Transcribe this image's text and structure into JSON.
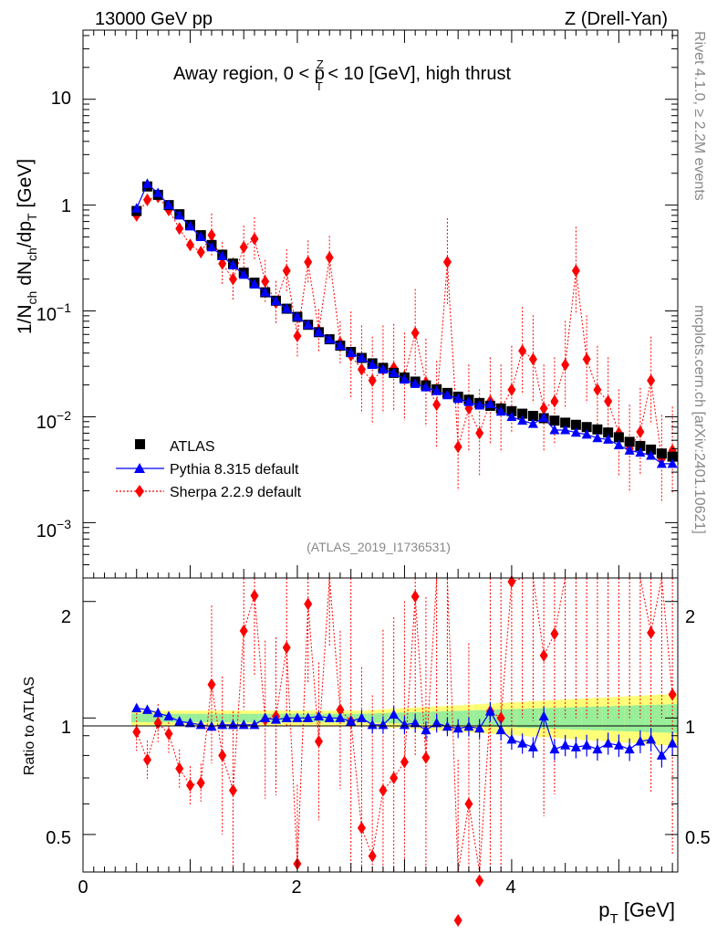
{
  "header": {
    "left": "13000 GeV pp",
    "right": "Z (Drell-Yan)"
  },
  "title": {
    "prefix": "Away region, 0 < p",
    "sup": "Z",
    "sub": "T",
    "suffix": " < 10 [GeV], high thrust"
  },
  "side_labels": {
    "rivet": "Rivet 4.1.0, ≥ 2.2M events",
    "mcplots": "mcplots.cern.ch [arXiv:2401.10621]"
  },
  "analysis_id": "(ATLAS_2019_I1736531)",
  "axes": {
    "ylabel_top": "1/N_ch dN_ch/dp_T [GeV]",
    "ylabel_bottom": "Ratio to ATLAS",
    "xlabel": "p_T [GeV]",
    "top_ticks": [
      "10",
      "1",
      "10^-1",
      "10^-2",
      "10^-3"
    ],
    "ratio_ticks": [
      "2",
      "1",
      "0.5"
    ],
    "x_ticks": [
      "0",
      "2",
      "4"
    ]
  },
  "legend": [
    "ATLAS",
    "Pythia 8.315 default",
    "Sherpa 2.2.9 default"
  ],
  "colors": {
    "atlas": "#000000",
    "pythia": "#0000ff",
    "sherpa": "#ff0000",
    "band_outer": "#ffff77",
    "band_inner": "#99ee99"
  },
  "chart_data": {
    "type": "scatter",
    "xlim": [
      0,
      5.55
    ],
    "ylim_main": [
      0.0003,
      45
    ],
    "ylim_ratio": [
      0.4,
      2.3
    ],
    "x": [
      0.5,
      0.6,
      0.7,
      0.8,
      0.9,
      1.0,
      1.1,
      1.2,
      1.3,
      1.4,
      1.5,
      1.6,
      1.7,
      1.8,
      1.9,
      2.0,
      2.1,
      2.2,
      2.3,
      2.4,
      2.5,
      2.6,
      2.7,
      2.8,
      2.9,
      3.0,
      3.1,
      3.2,
      3.3,
      3.4,
      3.5,
      3.6,
      3.7,
      3.8,
      3.9,
      4.0,
      4.1,
      4.2,
      4.3,
      4.4,
      4.5,
      4.6,
      4.7,
      4.8,
      4.9,
      5.0,
      5.1,
      5.2,
      5.3,
      5.4,
      5.5
    ],
    "series": [
      {
        "name": "ATLAS",
        "values": [
          0.88,
          1.5,
          1.25,
          1.0,
          0.82,
          0.65,
          0.52,
          0.42,
          0.34,
          0.28,
          0.23,
          0.185,
          0.15,
          0.125,
          0.105,
          0.088,
          0.074,
          0.063,
          0.054,
          0.047,
          0.041,
          0.036,
          0.032,
          0.029,
          0.026,
          0.0235,
          0.0215,
          0.0198,
          0.0182,
          0.0168,
          0.0155,
          0.0145,
          0.0135,
          0.0127,
          0.012,
          0.0113,
          0.0107,
          0.0102,
          0.0097,
          0.0092,
          0.0088,
          0.0084,
          0.008,
          0.0076,
          0.0071,
          0.0064,
          0.0058,
          0.0053,
          0.0049,
          0.0045,
          0.0042
        ]
      },
      {
        "name": "Pythia 8.315 default",
        "values": [
          0.93,
          1.59,
          1.3,
          1.0,
          0.8,
          0.63,
          0.5,
          0.4,
          0.33,
          0.27,
          0.22,
          0.178,
          0.15,
          0.124,
          0.105,
          0.088,
          0.074,
          0.063,
          0.054,
          0.047,
          0.04,
          0.036,
          0.031,
          0.028,
          0.026,
          0.0225,
          0.0205,
          0.019,
          0.0175,
          0.016,
          0.0148,
          0.0138,
          0.0128,
          0.0132,
          0.0112,
          0.01,
          0.0092,
          0.0086,
          0.0098,
          0.0075,
          0.0075,
          0.0071,
          0.0068,
          0.0063,
          0.0061,
          0.0054,
          0.0048,
          0.0046,
          0.0043,
          0.0036,
          0.0036
        ],
        "ratio": [
          1.06,
          1.05,
          1.03,
          1.01,
          0.98,
          0.97,
          0.96,
          0.95,
          0.96,
          0.96,
          0.96,
          0.96,
          1.0,
          0.99,
          1.0,
          1.0,
          1.0,
          1.01,
          1.0,
          1.0,
          0.98,
          1.0,
          0.96,
          0.96,
          1.02,
          0.96,
          0.97,
          0.93,
          0.97,
          0.95,
          0.94,
          0.95,
          0.94,
          1.04,
          0.93,
          0.88,
          0.86,
          0.84,
          1.01,
          0.83,
          0.85,
          0.84,
          0.85,
          0.83,
          0.86,
          0.85,
          0.83,
          0.87,
          0.88,
          0.8,
          0.86
        ]
      },
      {
        "name": "Sherpa 2.2.9 default",
        "values": [
          0.8,
          1.12,
          1.2,
          0.9,
          0.6,
          0.42,
          0.36,
          0.52,
          0.28,
          0.2,
          0.4,
          0.48,
          0.19,
          0.12,
          0.24,
          0.058,
          0.29,
          0.065,
          0.32,
          0.05,
          0.038,
          0.028,
          0.022,
          0.028,
          0.029,
          0.024,
          0.062,
          0.021,
          0.013,
          0.29,
          0.0052,
          0.012,
          0.007,
          0.014,
          0.012,
          0.018,
          0.042,
          0.035,
          0.012,
          0.014,
          0.031,
          0.24,
          0.035,
          0.018,
          0.014,
          0.007,
          0.005,
          0.0072,
          0.022,
          0.004,
          0.0048
        ],
        "ratio": [
          0.92,
          0.78,
          0.97,
          0.91,
          0.74,
          0.67,
          0.68,
          1.22,
          0.8,
          0.65,
          1.68,
          2.07,
          0.99,
          1.01,
          1.52,
          0.42,
          1.97,
          0.87,
          2.45,
          1.05,
          0.98,
          0.52,
          0.44,
          0.65,
          0.7,
          0.77,
          2.06,
          0.79,
          2.6,
          2.55,
          0.3,
          0.6,
          0.38,
          1.04,
          1.0,
          2.25,
          2.6,
          2.55,
          1.45,
          1.65,
          2.6,
          2.6,
          2.6,
          2.6,
          2.6,
          2.6,
          2.6,
          2.6,
          1.66,
          2.6,
          1.15
        ]
      }
    ]
  }
}
